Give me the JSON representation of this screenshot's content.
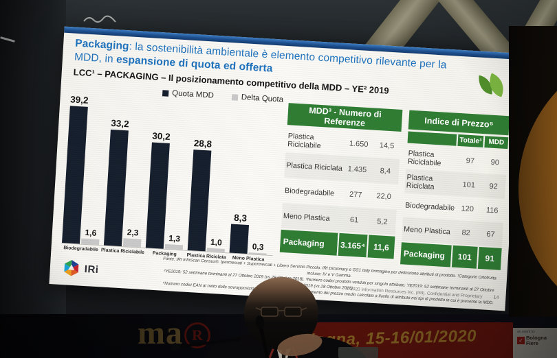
{
  "slide": {
    "title": {
      "lead_bold": "Packaging",
      "middle": ": la sostenibilità ambientale è elemento competitivo rilevante per la MDD, in ",
      "tail_bold": "espansione di quota ed offerta"
    },
    "subtitle": "LCC¹ – PACKAGING – Il posizionamento competitivo della MDD – YE² 2019",
    "footnotes": [
      "Fonte: IRI InfoScan Census®. Ipermercati + Supermercati + Libero Servizio Piccolo. IRI Dictionary e GS1 Italy Immagino per definizione attributi di prodotto. ¹Categorie Ortofrutta incluse: IV e V Gamma.",
      "²YE2019: 52 settimane terminanti al 27 Ottobre 2019 (vs 28 Ottobre 2018). ³Numero codici prodotto venduti per singolo attributo. YE2019: 52 settimane terminanti al 27 Ottobre 2019 (vs 28 Ottobre 2018).",
      "⁴Numero codici EAN al netto delle sovrapposizioni. ⁵Indice di Fisher: posizionamento del prezzo medio calcolato a livello di attributo nei tipi di prodotto in cui è presente la MDD."
    ],
    "logo_text": "IRi",
    "copyright": "© 2020 Information Resources Inc. (IRI). Confidential and Proprietary",
    "page_number": "14",
    "accent_colors": {
      "title_blue": "#1d71bd",
      "table_green": "#2e7d33",
      "bar_navy": "#151e2d",
      "delta_gray": "#c9c9c9"
    }
  },
  "chart_data": [
    {
      "type": "bar",
      "title": "LCC – PACKAGING – Il posizionamento competitivo della MDD – YE 2019",
      "categories": [
        "Biodegradabile",
        "Plastica Riciclabile",
        "Packaging",
        "Plastica Riciclata",
        "Meno Plastica"
      ],
      "series": [
        {
          "name": "Quota MDD",
          "values": [
            39.2,
            33.2,
            30.2,
            28.8,
            8.3
          ],
          "labels": [
            "39,2",
            "33,2",
            "30,2",
            "28,8",
            "8,3"
          ],
          "color": "#151e2d"
        },
        {
          "name": "Delta Quota",
          "values": [
            1.6,
            2.3,
            1.3,
            1.0,
            0.3
          ],
          "labels": [
            "1,6",
            "2,3",
            "1,3",
            "1,0",
            "0,3"
          ],
          "color": "#c9c9c9"
        }
      ],
      "ylim": [
        0,
        40
      ],
      "grid": false,
      "legend_position": "top",
      "data_labels": true
    },
    {
      "type": "table",
      "key": "referenze",
      "title": "MDD³ - Numero di Referenze",
      "rows": [
        {
          "label": "Plastica Riciclabile",
          "values": [
            "1.650",
            "14,5"
          ]
        },
        {
          "label": "Plastica Riciclata",
          "values": [
            "1.435",
            "8,4"
          ]
        },
        {
          "label": "Biodegradabile",
          "values": [
            "277",
            "22,0"
          ]
        },
        {
          "label": "Meno Plastica",
          "values": [
            "61",
            "5,2"
          ]
        }
      ],
      "total_row": {
        "label": "Packaging",
        "values": [
          "3.165⁴",
          "11,6"
        ]
      }
    },
    {
      "type": "table",
      "key": "prezzo",
      "title": "Indice di Prezzo⁵",
      "sub_columns": [
        "Totale³",
        "MDD"
      ],
      "rows": [
        {
          "label": "Plastica Riciclabile",
          "values": [
            "97",
            "90"
          ]
        },
        {
          "label": "Plastica Riciclata",
          "values": [
            "101",
            "92"
          ]
        },
        {
          "label": "Biodegradabile",
          "values": [
            "120",
            "116"
          ]
        },
        {
          "label": "Meno Plastica",
          "values": [
            "82",
            "67"
          ]
        }
      ],
      "total_row": {
        "label": "Packaging",
        "values": [
          "101",
          "91"
        ]
      }
    }
  ],
  "scene": {
    "banner": {
      "brand_text": "ma",
      "registered_mark": "R",
      "event_location_date": "Bologna, 15-16/01/2020",
      "organizer_note": "an event by",
      "organizer_name": "Bologna Fiere"
    }
  }
}
